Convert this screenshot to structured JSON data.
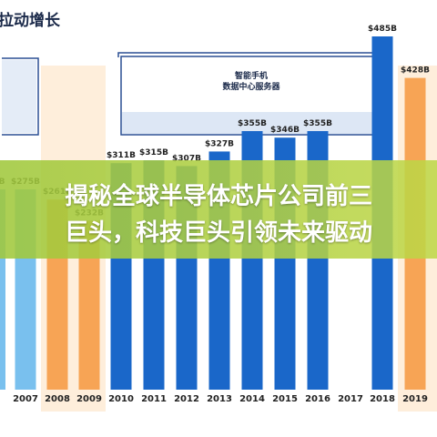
{
  "header": {
    "title": "拉动增长"
  },
  "overlay": {
    "line1": "揭秘全球半导体芯片公司前三",
    "line2": "巨头，科技巨头引领未来驱动"
  },
  "annotation": {
    "line1": "智能手机",
    "line2": "数据中心服务器"
  },
  "colors": {
    "blue_bar": "#1a67c9",
    "light_blue_bar": "#79c0ee",
    "orange_bar": "#f7a455",
    "orange_band": "#fde8cf",
    "bracket": "#2a4f94",
    "axis_text": "#222222"
  },
  "chart_data": {
    "type": "bar",
    "categories": [
      "2007",
      "2008",
      "2009",
      "2010",
      "2011",
      "2012",
      "2013",
      "2014",
      "2015",
      "2016",
      "2017",
      "2018",
      "2019"
    ],
    "values": [
      275,
      261,
      232,
      311,
      315,
      307,
      327,
      355,
      346,
      355,
      null,
      485,
      428
    ],
    "labels": [
      "$275B",
      "$261B",
      "$232B",
      "$311B",
      "$315B",
      "$307B",
      "$327B",
      "$355B",
      "$346B",
      "$355B",
      "",
      "$485B",
      "$428B"
    ],
    "partial_left": {
      "category": "",
      "value": 275,
      "label": "B"
    },
    "highlighted_categories": [
      "2008",
      "2009",
      "2019"
    ],
    "title": "",
    "xlabel": "",
    "ylabel": "",
    "grid": false
  }
}
